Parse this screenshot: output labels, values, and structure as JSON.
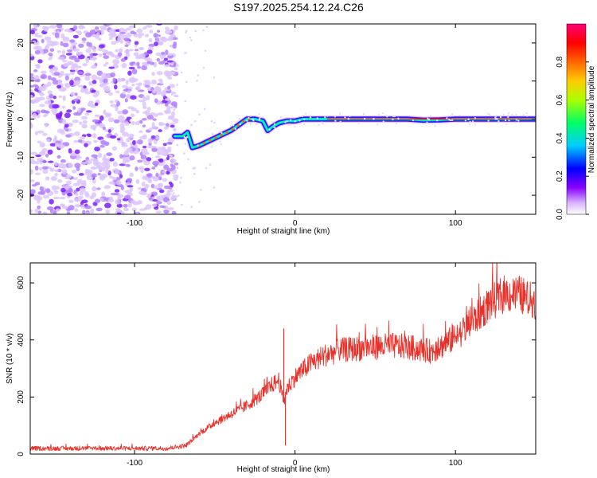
{
  "title": "S197.2025.254.12.24.C26",
  "chart_data": [
    {
      "type": "heatmap",
      "xlabel": "Height of straight line (km)",
      "ylabel": "Frequency (Hz)",
      "xlim": [
        -165,
        150
      ],
      "ylim": [
        -25,
        25
      ],
      "xticks": [
        -100,
        0,
        100
      ],
      "yticks": [
        20,
        10,
        0,
        -10,
        -20
      ],
      "noise_region_x": [
        -165,
        -78
      ],
      "ridge": {
        "x": [
          -75,
          -70,
          -67,
          -64,
          -60,
          -55,
          -50,
          -45,
          -40,
          -35,
          -30,
          -25,
          -20,
          -17,
          -14,
          -10,
          -5,
          0,
          5,
          10,
          15,
          20,
          30,
          40,
          50,
          60,
          70,
          80,
          90,
          100,
          110,
          120,
          130,
          140,
          150
        ],
        "frequency": [
          -4.5,
          -4.5,
          -3.5,
          -7.5,
          -7,
          -6,
          -5,
          -4,
          -3,
          -1.5,
          0,
          0,
          -0.5,
          -3,
          -2,
          -1,
          -0.5,
          -0.5,
          0,
          0,
          0,
          0,
          0,
          0,
          0,
          0,
          0,
          -0.3,
          -0.2,
          0,
          0,
          0,
          0,
          0,
          0
        ]
      },
      "colorbar": {
        "label": "Normalized spectral amplitude",
        "ticks": [
          0.0,
          0.2,
          0.4,
          0.6,
          0.8
        ],
        "range": [
          0,
          1
        ],
        "colors": [
          "#ffffff",
          "#cc99ff",
          "#7700ff",
          "#0000ff",
          "#00ccff",
          "#00ff66",
          "#ccff00",
          "#ffaa00",
          "#ff0000",
          "#ff0099"
        ]
      }
    },
    {
      "type": "line",
      "xlabel": "Height of straight line (km)",
      "ylabel": "SNR (10 * v/v)",
      "xlim": [
        -165,
        150
      ],
      "ylim": [
        0,
        670
      ],
      "xticks": [
        -100,
        0,
        100
      ],
      "yticks": [
        0,
        200,
        400,
        600
      ],
      "color": "#e8312a",
      "trend": {
        "x": [
          -165,
          -80,
          -68,
          -60,
          -50,
          -40,
          -30,
          -20,
          -15,
          -10,
          -7,
          -5,
          0,
          10,
          20,
          30,
          40,
          50,
          60,
          70,
          80,
          85,
          90,
          100,
          110,
          120,
          130,
          140,
          150
        ],
        "y": [
          20,
          20,
          30,
          70,
          110,
          140,
          170,
          210,
          240,
          260,
          180,
          230,
          270,
          320,
          350,
          365,
          370,
          375,
          380,
          375,
          365,
          360,
          375,
          410,
          460,
          520,
          560,
          560,
          530
        ]
      },
      "spikes": [
        {
          "x": -7,
          "y": 440
        },
        {
          "x": -6,
          "y": 30
        }
      ]
    }
  ]
}
